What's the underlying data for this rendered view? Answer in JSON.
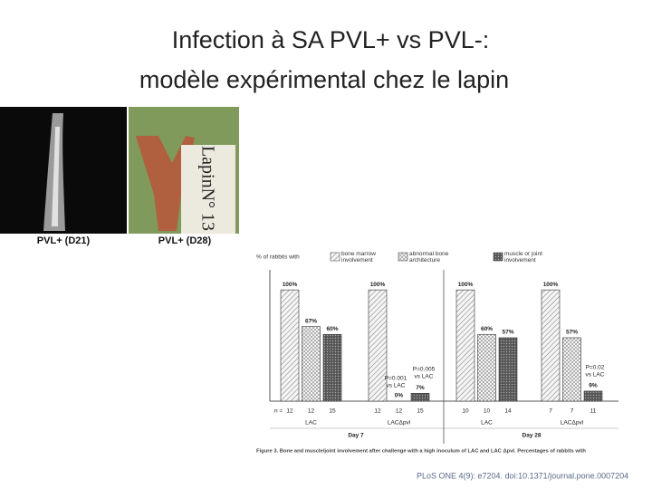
{
  "title_lines": [
    "Infection à SA PVL+ vs PVL-:",
    "modèle expérimental chez le lapin"
  ],
  "images": [
    {
      "caption": "PVL+ (D21)"
    },
    {
      "caption": "PVL+ (D28)",
      "label": "LapinN° 13"
    }
  ],
  "figure_caption": "Figure 3. Bone and muscle/joint involvement after challenge with a high inoculum of LAC and LAC ΔpvI. Percentages of rabbits with",
  "citation": "PLoS ONE 4(9): e7204. doi:10.1371/journal.pone.0007204",
  "chart_data": {
    "type": "bar",
    "y_label": "% of rabbits with",
    "categories": [
      "LAC",
      "LACΔpvl",
      "LAC",
      "LACΔpvl"
    ],
    "day_labels": [
      "Day 7",
      "Day 28"
    ],
    "n_prefix": "n =",
    "ylim": [
      0,
      118
    ],
    "series": [
      {
        "name": "bone marrow involvement",
        "color": "#dcdcdc",
        "values": [
          100,
          100,
          100,
          100
        ],
        "value_labels": [
          "100%",
          "100%",
          "100%",
          "100%"
        ],
        "n": [
          12,
          12,
          10,
          7
        ]
      },
      {
        "name": "abnormal bone architecture",
        "color": "#eeeeee",
        "values": [
          67,
          0,
          60,
          57
        ],
        "value_labels": [
          "67%",
          "0%",
          "60%",
          "57%"
        ],
        "n": [
          12,
          12,
          10,
          7
        ]
      },
      {
        "name": "muscle or joint involvement",
        "color": "#6a6a6a",
        "values": [
          60,
          7,
          57,
          9
        ],
        "value_labels": [
          "60%",
          "7%",
          "57%",
          "9%"
        ],
        "n": [
          15,
          15,
          14,
          11
        ]
      }
    ],
    "annotations": [
      [
        "P=0.001",
        "vs LAC"
      ],
      [
        "P=0.005",
        "vs LAC"
      ],
      [
        "P=0.02",
        "vs LAC"
      ]
    ]
  }
}
